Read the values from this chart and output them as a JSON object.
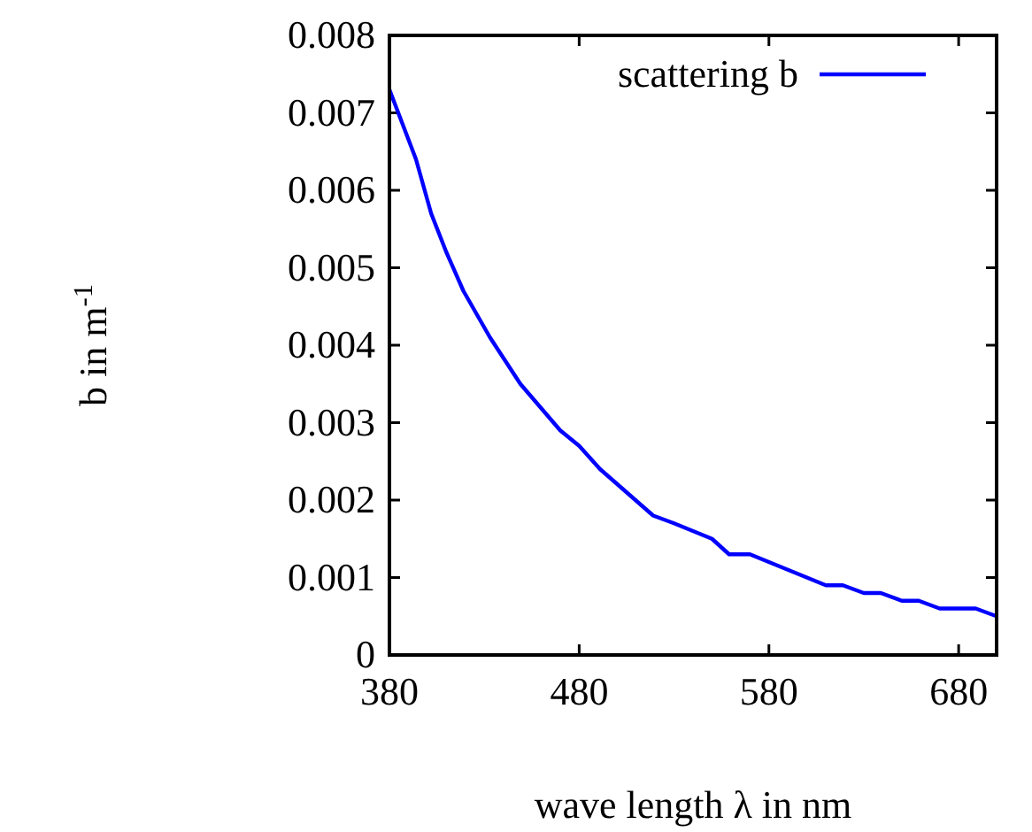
{
  "chart_data": {
    "type": "line",
    "xlabel": "wave length λ in nm",
    "ylabel": "b in m$^{-1}$",
    "xlim": [
      380,
      700
    ],
    "xticks": [
      380,
      480,
      580,
      680
    ],
    "ylim": [
      0,
      0.008
    ],
    "yticks": [
      0,
      0.001,
      0.002,
      0.003,
      0.004,
      0.005,
      0.006,
      0.007,
      0.008
    ],
    "legend": "top right",
    "grid": false,
    "series": [
      {
        "name": "scattering b",
        "color": "#0000ff",
        "x": [
          380,
          394,
          402,
          410,
          419,
          433,
          449,
          470,
          480,
          491,
          519,
          530,
          550,
          559,
          570,
          610,
          619,
          630,
          639,
          650,
          659,
          670,
          689,
          700
        ],
        "values": [
          0.0073,
          0.0064,
          0.0057,
          0.0052,
          0.0047,
          0.0041,
          0.0035,
          0.0029,
          0.0027,
          0.0024,
          0.0018,
          0.0017,
          0.0015,
          0.0013,
          0.0013,
          0.0009,
          0.0009,
          0.0008,
          0.0008,
          0.0007,
          0.0007,
          0.0006,
          0.0006,
          0.0005
        ]
      }
    ]
  }
}
